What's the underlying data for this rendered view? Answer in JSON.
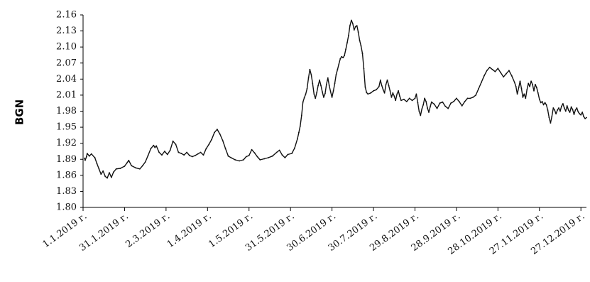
{
  "chart_data": {
    "type": "line",
    "ylabel": "BGN",
    "xlabel": "",
    "ylim": [
      1.8,
      2.16
    ],
    "yticks": [
      "1.80",
      "1.83",
      "1.86",
      "1.89",
      "1.92",
      "1.95",
      "1.98",
      "2.01",
      "2.04",
      "2.07",
      "2.10",
      "2.13",
      "2.16"
    ],
    "x_tick_labels": [
      "1.1.2019 г.",
      "31.1.2019 г.",
      "2.3.2019 г.",
      "1.4.2019 г.",
      "1.5.2019 г.",
      "31.5.2019 г.",
      "30.6.2019 г.",
      "30.7.2019 г.",
      "29.8.2019 г.",
      "28.9.2019 г.",
      "28.10.2019 г.",
      "27.11.2019 г.",
      "27.12.2019 г."
    ],
    "x_tick_days": [
      0,
      30,
      60,
      90,
      120,
      150,
      180,
      210,
      240,
      270,
      300,
      330,
      360
    ],
    "x_range_days": [
      0,
      364
    ],
    "grid": false,
    "colors": {
      "line": "#111111",
      "axis": "#000000"
    },
    "series": [
      {
        "name": "",
        "points": [
          [
            1.1,
            1.892
          ],
          [
            1.5,
            1.888
          ],
          [
            2.5,
            1.895
          ],
          [
            3,
            1.901
          ],
          [
            4.5,
            1.896
          ],
          [
            6,
            1.9
          ],
          [
            8.5,
            1.893
          ],
          [
            10,
            1.882
          ],
          [
            11.5,
            1.872
          ],
          [
            13,
            1.862
          ],
          [
            14.5,
            1.868
          ],
          [
            16,
            1.858
          ],
          [
            17.5,
            1.855
          ],
          [
            19,
            1.865
          ],
          [
            20.5,
            1.856
          ],
          [
            22,
            1.866
          ],
          [
            24,
            1.872
          ],
          [
            27,
            1.873
          ],
          [
            30,
            1.877
          ],
          [
            32,
            1.884
          ],
          [
            33,
            1.888
          ],
          [
            35,
            1.878
          ],
          [
            38,
            1.874
          ],
          [
            41,
            1.872
          ],
          [
            43,
            1.878
          ],
          [
            45,
            1.885
          ],
          [
            47,
            1.897
          ],
          [
            49,
            1.91
          ],
          [
            51,
            1.916
          ],
          [
            52,
            1.912
          ],
          [
            53,
            1.915
          ],
          [
            55,
            1.903
          ],
          [
            57,
            1.898
          ],
          [
            59,
            1.905
          ],
          [
            61,
            1.899
          ],
          [
            63,
            1.907
          ],
          [
            65,
            1.924
          ],
          [
            67,
            1.918
          ],
          [
            69,
            1.903
          ],
          [
            71,
            1.901
          ],
          [
            73,
            1.898
          ],
          [
            75,
            1.903
          ],
          [
            77,
            1.897
          ],
          [
            79,
            1.895
          ],
          [
            81,
            1.897
          ],
          [
            83,
            1.9
          ],
          [
            85,
            1.903
          ],
          [
            87,
            1.898
          ],
          [
            89,
            1.91
          ],
          [
            91,
            1.918
          ],
          [
            93,
            1.927
          ],
          [
            95,
            1.94
          ],
          [
            97,
            1.946
          ],
          [
            99,
            1.937
          ],
          [
            101,
            1.925
          ],
          [
            103,
            1.91
          ],
          [
            105,
            1.896
          ],
          [
            107,
            1.893
          ],
          [
            110,
            1.889
          ],
          [
            113,
            1.887
          ],
          [
            116,
            1.889
          ],
          [
            118,
            1.895
          ],
          [
            120,
            1.897
          ],
          [
            122,
            1.908
          ],
          [
            124,
            1.902
          ],
          [
            126,
            1.895
          ],
          [
            128,
            1.889
          ],
          [
            131,
            1.891
          ],
          [
            134,
            1.893
          ],
          [
            137,
            1.896
          ],
          [
            140,
            1.903
          ],
          [
            142,
            1.907
          ],
          [
            144,
            1.898
          ],
          [
            146,
            1.893
          ],
          [
            148,
            1.899
          ],
          [
            151,
            1.901
          ],
          [
            153,
            1.911
          ],
          [
            155,
            1.928
          ],
          [
            156,
            1.94
          ],
          [
            157,
            1.952
          ],
          [
            158,
            1.972
          ],
          [
            159,
            1.997
          ],
          [
            160,
            2.005
          ],
          [
            161,
            2.012
          ],
          [
            162,
            2.022
          ],
          [
            163,
            2.042
          ],
          [
            164,
            2.058
          ],
          [
            165,
            2.048
          ],
          [
            166,
            2.032
          ],
          [
            167,
            2.012
          ],
          [
            168,
            2.004
          ],
          [
            169,
            2.015
          ],
          [
            170,
            2.028
          ],
          [
            171,
            2.038
          ],
          [
            172,
            2.028
          ],
          [
            173,
            2.016
          ],
          [
            174,
            2.006
          ],
          [
            175,
            2.013
          ],
          [
            176,
            2.03
          ],
          [
            177,
            2.042
          ],
          [
            178,
            2.028
          ],
          [
            179,
            2.016
          ],
          [
            180,
            2.006
          ],
          [
            181,
            2.018
          ],
          [
            182,
            2.032
          ],
          [
            183,
            2.048
          ],
          [
            184,
            2.058
          ],
          [
            185,
            2.068
          ],
          [
            186,
            2.078
          ],
          [
            187,
            2.082
          ],
          [
            188,
            2.08
          ],
          [
            189,
            2.084
          ],
          [
            190,
            2.096
          ],
          [
            191,
            2.108
          ],
          [
            192,
            2.122
          ],
          [
            193,
            2.14
          ],
          [
            194,
            2.15
          ],
          [
            195,
            2.144
          ],
          [
            196,
            2.132
          ],
          [
            197,
            2.138
          ],
          [
            198,
            2.14
          ],
          [
            199,
            2.128
          ],
          [
            200,
            2.112
          ],
          [
            201,
            2.102
          ],
          [
            202,
            2.088
          ],
          [
            203,
            2.06
          ],
          [
            204,
            2.025
          ],
          [
            205,
            2.015
          ],
          [
            206,
            2.012
          ],
          [
            208,
            2.014
          ],
          [
            210,
            2.018
          ],
          [
            212,
            2.02
          ],
          [
            214,
            2.026
          ],
          [
            215,
            2.038
          ],
          [
            216,
            2.028
          ],
          [
            217,
            2.02
          ],
          [
            218,
            2.014
          ],
          [
            219,
            2.03
          ],
          [
            220,
            2.038
          ],
          [
            221,
            2.028
          ],
          [
            222,
            2.018
          ],
          [
            223,
            2.006
          ],
          [
            224,
            2.014
          ],
          [
            225,
            2.008
          ],
          [
            226,
            2.0
          ],
          [
            227,
            2.012
          ],
          [
            228,
            2.018
          ],
          [
            229,
            2.008
          ],
          [
            230,
            2.0
          ],
          [
            232,
            2.002
          ],
          [
            234,
            1.998
          ],
          [
            236,
            2.004
          ],
          [
            238,
            2.0
          ],
          [
            240,
            2.004
          ],
          [
            241,
            2.012
          ],
          [
            242,
            1.996
          ],
          [
            243,
            1.98
          ],
          [
            244,
            1.972
          ],
          [
            245,
            1.984
          ],
          [
            246,
            1.992
          ],
          [
            247,
            2.004
          ],
          [
            248,
            1.998
          ],
          [
            249,
            1.986
          ],
          [
            250,
            1.978
          ],
          [
            251,
            1.988
          ],
          [
            252,
            1.997
          ],
          [
            254,
            1.993
          ],
          [
            256,
            1.985
          ],
          [
            258,
            1.995
          ],
          [
            260,
            1.997
          ],
          [
            262,
            1.989
          ],
          [
            264,
            1.985
          ],
          [
            266,
            1.995
          ],
          [
            268,
            1.998
          ],
          [
            270,
            2.004
          ],
          [
            272,
            1.998
          ],
          [
            274,
            1.99
          ],
          [
            276,
            1.998
          ],
          [
            278,
            2.004
          ],
          [
            280,
            2.004
          ],
          [
            282,
            2.006
          ],
          [
            284,
            2.01
          ],
          [
            286,
            2.022
          ],
          [
            288,
            2.034
          ],
          [
            290,
            2.046
          ],
          [
            292,
            2.056
          ],
          [
            294,
            2.062
          ],
          [
            296,
            2.058
          ],
          [
            298,
            2.054
          ],
          [
            300,
            2.06
          ],
          [
            302,
            2.052
          ],
          [
            304,
            2.044
          ],
          [
            306,
            2.05
          ],
          [
            308,
            2.056
          ],
          [
            310,
            2.046
          ],
          [
            312,
            2.034
          ],
          [
            313,
            2.026
          ],
          [
            314,
            2.012
          ],
          [
            315,
            2.024
          ],
          [
            316,
            2.036
          ],
          [
            317,
            2.022
          ],
          [
            318,
            2.006
          ],
          [
            319,
            2.012
          ],
          [
            320,
            2.004
          ],
          [
            321,
            2.02
          ],
          [
            322,
            2.032
          ],
          [
            323,
            2.026
          ],
          [
            324,
            2.036
          ],
          [
            325,
            2.03
          ],
          [
            326,
            2.018
          ],
          [
            327,
            2.03
          ],
          [
            328,
            2.024
          ],
          [
            329,
            2.014
          ],
          [
            330,
            2.002
          ],
          [
            331,
            1.996
          ],
          [
            332,
            1.998
          ],
          [
            333,
            1.992
          ],
          [
            334,
            1.996
          ],
          [
            335,
            1.992
          ],
          [
            336,
            1.982
          ],
          [
            337,
            1.968
          ],
          [
            338,
            1.958
          ],
          [
            339,
            1.97
          ],
          [
            340,
            1.986
          ],
          [
            341,
            1.982
          ],
          [
            342,
            1.975
          ],
          [
            343,
            1.982
          ],
          [
            344,
            1.986
          ],
          [
            345,
            1.98
          ],
          [
            346,
            1.989
          ],
          [
            347,
            1.994
          ],
          [
            348,
            1.986
          ],
          [
            349,
            1.98
          ],
          [
            350,
            1.99
          ],
          [
            351,
            1.982
          ],
          [
            352,
            1.978
          ],
          [
            353,
            1.988
          ],
          [
            354,
            1.983
          ],
          [
            355,
            1.974
          ],
          [
            356,
            1.982
          ],
          [
            357,
            1.986
          ],
          [
            358,
            1.979
          ],
          [
            359,
            1.975
          ],
          [
            360,
            1.973
          ],
          [
            361,
            1.978
          ],
          [
            362,
            1.97
          ],
          [
            363,
            1.966
          ],
          [
            364,
            1.968
          ]
        ]
      }
    ]
  }
}
